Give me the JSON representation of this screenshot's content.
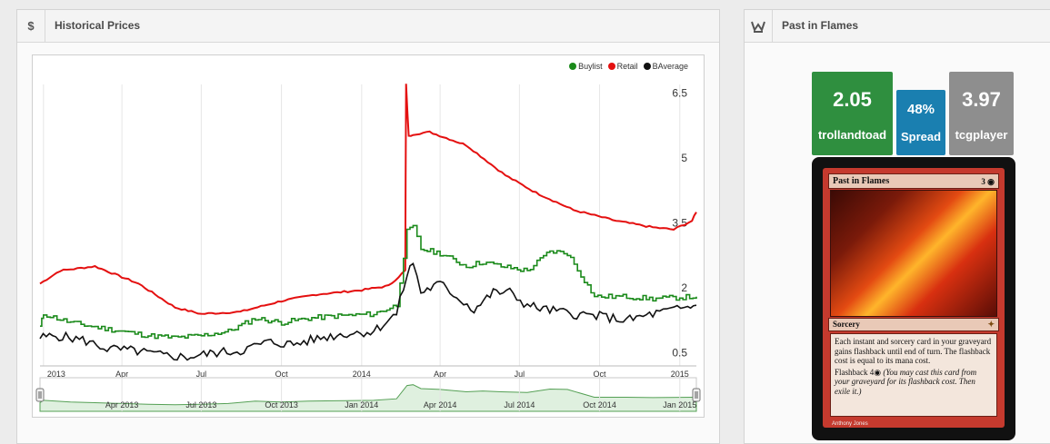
{
  "left_panel": {
    "icon": "$",
    "title": "Historical Prices"
  },
  "right_panel": {
    "icon": "crown-icon",
    "title": "Past in Flames"
  },
  "legend": [
    {
      "label": "Buylist",
      "color": "#1a8a1a"
    },
    {
      "label": "Retail",
      "color": "#e41010"
    },
    {
      "label": "BAverage",
      "color": "#111111"
    }
  ],
  "price_tiles": [
    {
      "value": "2.05",
      "label": "trollandtoad",
      "color": "#2f8f3f"
    },
    {
      "value": "48%",
      "label": "Spread",
      "color": "#1a7fb0"
    },
    {
      "value": "3.97",
      "label": "tcgplayer",
      "color": "#8e8e8e"
    }
  ],
  "card": {
    "name": "Past in Flames",
    "cost": "3 ◉",
    "type": "Sorcery",
    "set_symbol": "✦",
    "rules": "Each instant and sorcery card in your graveyard gains flashback until end of turn. The flashback cost is equal to its mana cost.",
    "flashback": "Flashback 4◉",
    "flashback_reminder": "(You may cast this card from your graveyard for its flashback cost. Then exile it.)",
    "artist": "Anthony Jones"
  },
  "chart_data": {
    "type": "line",
    "x_range": [
      "2012-12-28",
      "2015-01-20"
    ],
    "x_tick_labels": [
      "2013",
      "Apr",
      "Jul",
      "Oct",
      "2014",
      "Apr",
      "Jul",
      "Oct",
      "2015"
    ],
    "y_tick_labels": [
      "6.5",
      "5",
      "3.5",
      "2",
      "0.5"
    ],
    "ylim": [
      0.2,
      6.7
    ],
    "navigator_labels": [
      "Apr 2013",
      "Jul 2013",
      "Oct 2013",
      "Jan 2014",
      "Apr 2014",
      "Jul 2014",
      "Oct 2014",
      "Jan 2015"
    ],
    "series": [
      {
        "name": "Retail",
        "color": "#e41010",
        "x": [
          "2012-12-28",
          "2013-01-20",
          "2013-03-01",
          "2013-04-20",
          "2013-06-01",
          "2013-07-01",
          "2013-08-15",
          "2013-10-01",
          "2013-11-10",
          "2014-01-01",
          "2014-02-01",
          "2014-02-20",
          "2014-02-21",
          "2014-02-24",
          "2014-03-01",
          "2014-03-20",
          "2014-05-01",
          "2014-06-15",
          "2014-07-20",
          "2014-09-01",
          "2014-10-20",
          "2014-12-01",
          "2014-12-25",
          "2015-01-15",
          "2015-01-20"
        ],
        "values": [
          2.1,
          2.4,
          2.5,
          2.1,
          1.55,
          1.4,
          1.45,
          1.7,
          1.85,
          1.95,
          2.05,
          2.4,
          6.7,
          5.5,
          5.55,
          5.6,
          5.3,
          4.6,
          4.2,
          3.8,
          3.55,
          3.4,
          3.35,
          3.55,
          3.75
        ]
      },
      {
        "name": "Buylist",
        "color": "#1a8a1a",
        "x": [
          "2012-12-28",
          "2013-01-01",
          "2013-02-01",
          "2013-03-01",
          "2013-04-01",
          "2013-05-01",
          "2013-06-01",
          "2013-07-01",
          "2013-08-01",
          "2013-09-01",
          "2013-10-01",
          "2013-11-01",
          "2013-12-01",
          "2014-01-15",
          "2014-02-10",
          "2014-02-22",
          "2014-03-01",
          "2014-03-10",
          "2014-04-01",
          "2014-05-01",
          "2014-05-20",
          "2014-06-10",
          "2014-07-10",
          "2014-08-05",
          "2014-08-25",
          "2014-09-25",
          "2014-11-01",
          "2014-12-01",
          "2015-01-20"
        ],
        "values": [
          1.1,
          1.4,
          1.2,
          1.1,
          1.0,
          0.9,
          0.85,
          0.9,
          1.0,
          1.3,
          1.2,
          1.3,
          1.35,
          1.4,
          1.6,
          3.3,
          3.4,
          2.9,
          2.8,
          2.5,
          2.6,
          2.5,
          2.4,
          2.85,
          2.8,
          1.8,
          1.8,
          1.75,
          1.8
        ]
      },
      {
        "name": "BAverage",
        "color": "#111111",
        "x": [
          "2012-12-28",
          "2013-01-15",
          "2013-02-15",
          "2013-03-15",
          "2013-04-15",
          "2013-05-15",
          "2013-06-15",
          "2013-07-15",
          "2013-08-15",
          "2013-09-15",
          "2013-10-15",
          "2013-11-15",
          "2013-12-15",
          "2014-01-15",
          "2014-02-10",
          "2014-02-22",
          "2014-03-01",
          "2014-03-10",
          "2014-04-01",
          "2014-04-20",
          "2014-05-10",
          "2014-06-01",
          "2014-06-20",
          "2014-07-10",
          "2014-08-01",
          "2014-09-01",
          "2014-10-01",
          "2014-11-01",
          "2014-12-01",
          "2015-01-10",
          "2015-01-20"
        ],
        "values": [
          0.85,
          0.9,
          0.8,
          0.6,
          0.55,
          0.45,
          0.4,
          0.5,
          0.55,
          0.75,
          0.7,
          0.85,
          0.95,
          1.0,
          1.4,
          2.3,
          2.6,
          1.9,
          2.1,
          1.8,
          1.5,
          1.9,
          1.9,
          1.6,
          1.5,
          1.4,
          1.35,
          1.25,
          1.4,
          1.55,
          1.6
        ]
      }
    ]
  }
}
